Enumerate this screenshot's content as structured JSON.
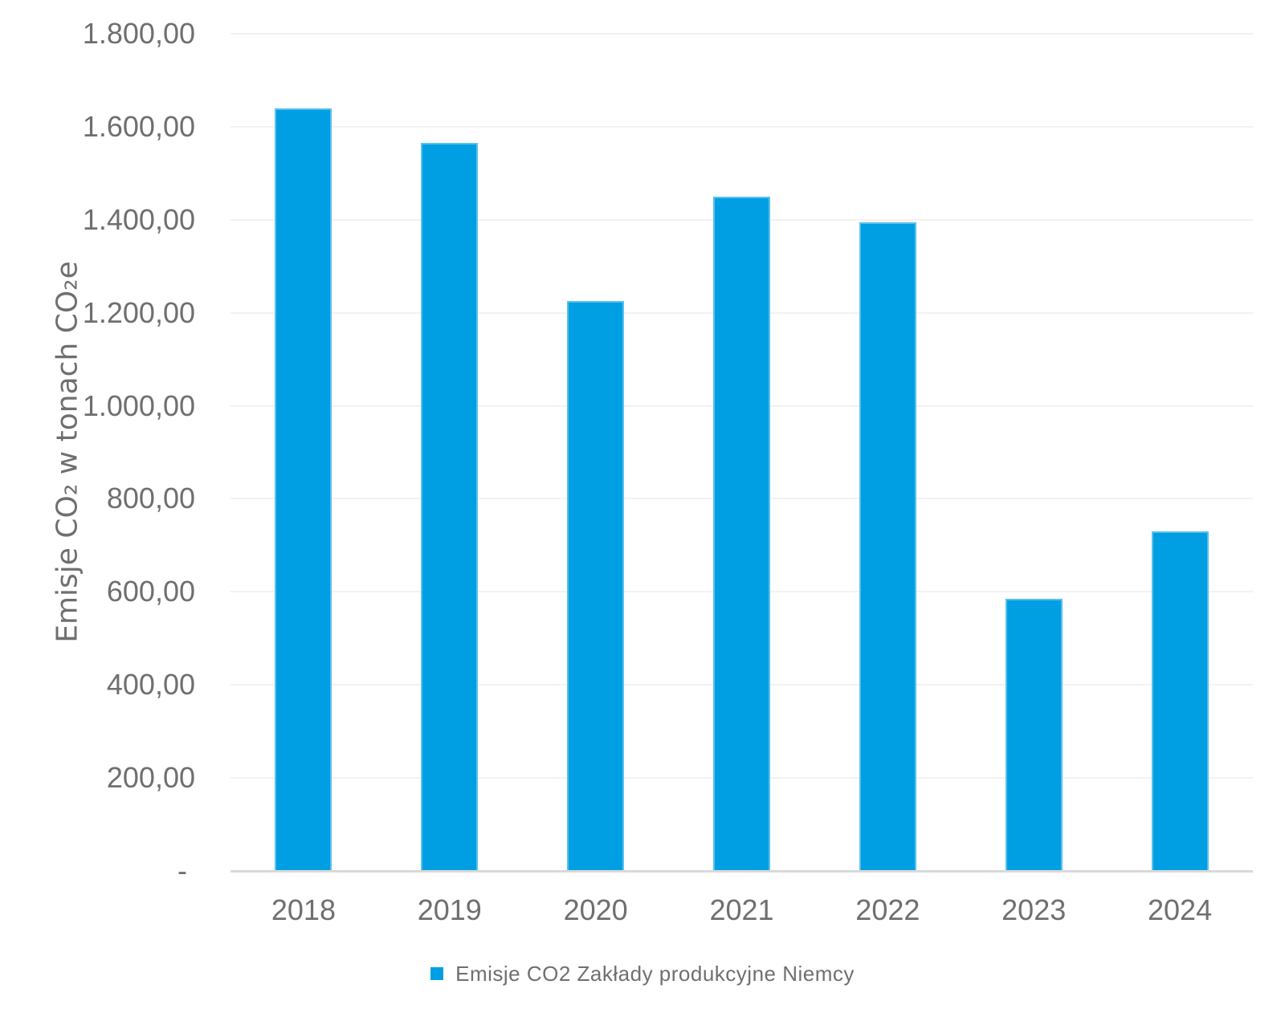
{
  "colors": {
    "bar": "#009fe3",
    "grid": "#f2f2f2",
    "axis": "#d9d9d9",
    "text": "#6f6f6f"
  },
  "chart": {
    "y_axis_title": "Emisje CO₂ w tonach CO₂e",
    "legend_label": "Emisje CO2 Zakłady produkcyjne Niemcy"
  },
  "chart_data": {
    "type": "bar",
    "title": "",
    "categories": [
      "2018",
      "2019",
      "2020",
      "2021",
      "2022",
      "2023",
      "2024"
    ],
    "values": [
      1640,
      1565,
      1225,
      1450,
      1395,
      585,
      730
    ],
    "series": [
      {
        "name": "Emisje CO2 Zakłady produkcyjne Niemcy",
        "values": [
          1640,
          1565,
          1225,
          1450,
          1395,
          585,
          730
        ]
      }
    ],
    "xlabel": "",
    "ylabel": "Emisje CO₂ w tonach CO₂e",
    "ylim": [
      0,
      1800
    ],
    "ytick_step": 200,
    "ytick_labels": [
      "1.800,00",
      "1.600,00",
      "1.400,00",
      "1.200,00",
      "1.000,00",
      "800,00",
      "600,00",
      "400,00",
      "200,00",
      "- "
    ],
    "grid": true,
    "legend_position": "bottom",
    "bar_color": "#009fe3"
  }
}
